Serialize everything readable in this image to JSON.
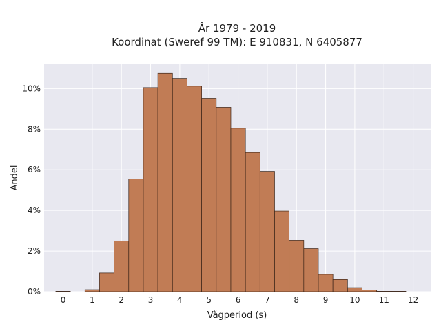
{
  "chart_data": {
    "type": "bar",
    "title": "År 1979 - 2019",
    "subtitle": "Koordinat (Sweref 99 TM): E 910831, N 6405877",
    "xlabel": "Vågperiod (s)",
    "ylabel": "Andel",
    "bin_width": 0.5,
    "bin_starts": [
      -0.25,
      0.75,
      1.25,
      1.75,
      2.25,
      2.75,
      3.25,
      3.75,
      4.25,
      4.75,
      5.25,
      5.75,
      6.25,
      6.75,
      7.25,
      7.75,
      8.25,
      8.75,
      9.25,
      9.75,
      10.25,
      10.75,
      11.25
    ],
    "values": [
      0.02,
      0.1,
      0.92,
      2.5,
      5.55,
      10.05,
      10.75,
      10.5,
      10.12,
      9.52,
      9.08,
      8.05,
      6.85,
      5.92,
      3.97,
      2.53,
      2.12,
      0.85,
      0.6,
      0.2,
      0.08,
      0.02,
      0.02
    ],
    "xlim": [
      -0.65,
      12.6
    ],
    "ylim": [
      0,
      11.2
    ],
    "x_ticks": [
      0,
      1,
      2,
      3,
      4,
      5,
      6,
      7,
      8,
      9,
      10,
      11,
      12
    ],
    "x_tick_labels": [
      "0",
      "1",
      "2",
      "3",
      "4",
      "5",
      "6",
      "7",
      "8",
      "9",
      "10",
      "11",
      "12"
    ],
    "y_ticks": [
      0,
      2,
      4,
      6,
      8,
      10
    ],
    "y_tick_labels": [
      "0%",
      "2%",
      "4%",
      "6%",
      "8%",
      "10%"
    ],
    "grid": true,
    "colors": {
      "bar_fill": "#c17c55",
      "bar_edge": "#3a2418",
      "plot_bg": "#e8e8f0",
      "grid": "#ffffff"
    }
  }
}
